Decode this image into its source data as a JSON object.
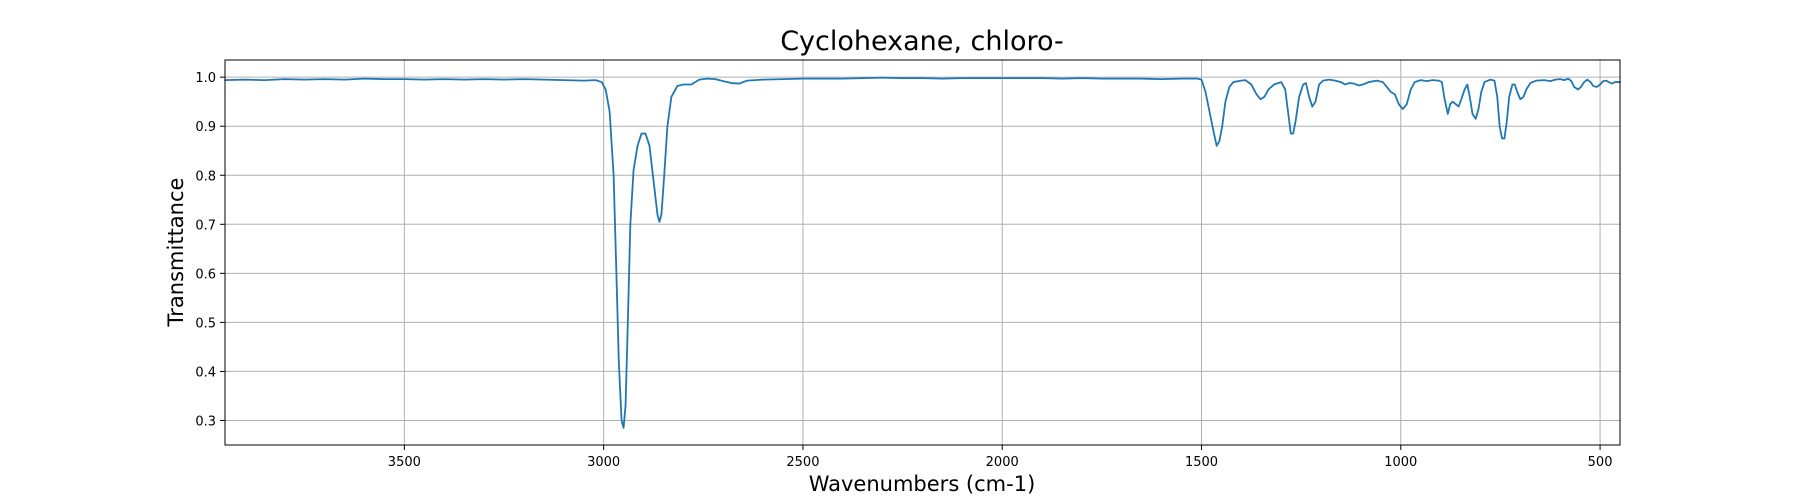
{
  "chart_data": {
    "type": "line",
    "title": "Cyclohexane, chloro-",
    "xlabel": "Wavenumbers (cm-1)",
    "ylabel": "Transmittance",
    "xlim": [
      3950,
      450
    ],
    "ylim": [
      0.25,
      1.035
    ],
    "x_inverted": true,
    "grid": true,
    "x_ticks": [
      3500,
      3000,
      2500,
      2000,
      1500,
      1000,
      500
    ],
    "x_tick_labels": [
      "3500",
      "3000",
      "2500",
      "2000",
      "1500",
      "1000",
      "500"
    ],
    "y_ticks": [
      0.3,
      0.4,
      0.5,
      0.6,
      0.7,
      0.8,
      0.9,
      1.0
    ],
    "y_tick_labels": [
      "0.3",
      "0.4",
      "0.5",
      "0.6",
      "0.7",
      "0.8",
      "0.9",
      "1.0"
    ],
    "series": [
      {
        "color": "#1f77b4",
        "points": [
          [
            3950,
            0.994
          ],
          [
            3900,
            0.995
          ],
          [
            3850,
            0.994
          ],
          [
            3800,
            0.996
          ],
          [
            3750,
            0.995
          ],
          [
            3700,
            0.996
          ],
          [
            3650,
            0.995
          ],
          [
            3600,
            0.997
          ],
          [
            3550,
            0.996
          ],
          [
            3500,
            0.996
          ],
          [
            3450,
            0.995
          ],
          [
            3400,
            0.996
          ],
          [
            3350,
            0.995
          ],
          [
            3300,
            0.996
          ],
          [
            3250,
            0.995
          ],
          [
            3200,
            0.996
          ],
          [
            3150,
            0.995
          ],
          [
            3100,
            0.994
          ],
          [
            3050,
            0.993
          ],
          [
            3020,
            0.994
          ],
          [
            3005,
            0.99
          ],
          [
            2995,
            0.975
          ],
          [
            2985,
            0.93
          ],
          [
            2975,
            0.8
          ],
          [
            2968,
            0.6
          ],
          [
            2962,
            0.42
          ],
          [
            2955,
            0.3
          ],
          [
            2950,
            0.285
          ],
          [
            2945,
            0.33
          ],
          [
            2940,
            0.48
          ],
          [
            2933,
            0.7
          ],
          [
            2925,
            0.81
          ],
          [
            2915,
            0.86
          ],
          [
            2905,
            0.885
          ],
          [
            2895,
            0.885
          ],
          [
            2885,
            0.86
          ],
          [
            2875,
            0.79
          ],
          [
            2865,
            0.72
          ],
          [
            2860,
            0.705
          ],
          [
            2855,
            0.72
          ],
          [
            2848,
            0.8
          ],
          [
            2840,
            0.9
          ],
          [
            2830,
            0.96
          ],
          [
            2815,
            0.982
          ],
          [
            2800,
            0.985
          ],
          [
            2780,
            0.985
          ],
          [
            2760,
            0.995
          ],
          [
            2740,
            0.997
          ],
          [
            2720,
            0.996
          ],
          [
            2700,
            0.992
          ],
          [
            2680,
            0.988
          ],
          [
            2660,
            0.987
          ],
          [
            2640,
            0.993
          ],
          [
            2600,
            0.995
          ],
          [
            2550,
            0.996
          ],
          [
            2500,
            0.997
          ],
          [
            2450,
            0.997
          ],
          [
            2400,
            0.997
          ],
          [
            2350,
            0.998
          ],
          [
            2300,
            0.999
          ],
          [
            2250,
            0.998
          ],
          [
            2200,
            0.998
          ],
          [
            2150,
            0.997
          ],
          [
            2100,
            0.998
          ],
          [
            2050,
            0.998
          ],
          [
            2000,
            0.998
          ],
          [
            1950,
            0.998
          ],
          [
            1900,
            0.998
          ],
          [
            1850,
            0.997
          ],
          [
            1800,
            0.998
          ],
          [
            1750,
            0.997
          ],
          [
            1700,
            0.997
          ],
          [
            1650,
            0.997
          ],
          [
            1600,
            0.996
          ],
          [
            1550,
            0.997
          ],
          [
            1510,
            0.997
          ],
          [
            1500,
            0.995
          ],
          [
            1490,
            0.97
          ],
          [
            1480,
            0.93
          ],
          [
            1470,
            0.89
          ],
          [
            1462,
            0.86
          ],
          [
            1455,
            0.87
          ],
          [
            1448,
            0.9
          ],
          [
            1440,
            0.95
          ],
          [
            1430,
            0.98
          ],
          [
            1420,
            0.99
          ],
          [
            1400,
            0.993
          ],
          [
            1390,
            0.994
          ],
          [
            1375,
            0.985
          ],
          [
            1362,
            0.965
          ],
          [
            1352,
            0.955
          ],
          [
            1342,
            0.96
          ],
          [
            1332,
            0.975
          ],
          [
            1318,
            0.985
          ],
          [
            1300,
            0.99
          ],
          [
            1290,
            0.975
          ],
          [
            1283,
            0.93
          ],
          [
            1276,
            0.885
          ],
          [
            1270,
            0.885
          ],
          [
            1264,
            0.91
          ],
          [
            1255,
            0.96
          ],
          [
            1245,
            0.985
          ],
          [
            1238,
            0.988
          ],
          [
            1230,
            0.96
          ],
          [
            1222,
            0.94
          ],
          [
            1214,
            0.95
          ],
          [
            1205,
            0.985
          ],
          [
            1195,
            0.993
          ],
          [
            1180,
            0.995
          ],
          [
            1165,
            0.993
          ],
          [
            1150,
            0.99
          ],
          [
            1140,
            0.985
          ],
          [
            1130,
            0.988
          ],
          [
            1118,
            0.987
          ],
          [
            1105,
            0.983
          ],
          [
            1095,
            0.985
          ],
          [
            1080,
            0.99
          ],
          [
            1060,
            0.993
          ],
          [
            1045,
            0.99
          ],
          [
            1035,
            0.98
          ],
          [
            1025,
            0.97
          ],
          [
            1015,
            0.965
          ],
          [
            1005,
            0.945
          ],
          [
            995,
            0.935
          ],
          [
            985,
            0.945
          ],
          [
            975,
            0.975
          ],
          [
            965,
            0.99
          ],
          [
            950,
            0.994
          ],
          [
            935,
            0.992
          ],
          [
            920,
            0.994
          ],
          [
            905,
            0.993
          ],
          [
            897,
            0.99
          ],
          [
            890,
            0.955
          ],
          [
            882,
            0.925
          ],
          [
            876,
            0.945
          ],
          [
            870,
            0.95
          ],
          [
            862,
            0.945
          ],
          [
            855,
            0.94
          ],
          [
            848,
            0.955
          ],
          [
            840,
            0.975
          ],
          [
            833,
            0.985
          ],
          [
            827,
            0.96
          ],
          [
            820,
            0.925
          ],
          [
            812,
            0.915
          ],
          [
            805,
            0.935
          ],
          [
            798,
            0.97
          ],
          [
            790,
            0.99
          ],
          [
            775,
            0.995
          ],
          [
            765,
            0.993
          ],
          [
            758,
            0.96
          ],
          [
            752,
            0.9
          ],
          [
            746,
            0.875
          ],
          [
            740,
            0.875
          ],
          [
            734,
            0.91
          ],
          [
            728,
            0.96
          ],
          [
            720,
            0.985
          ],
          [
            714,
            0.985
          ],
          [
            708,
            0.97
          ],
          [
            700,
            0.955
          ],
          [
            692,
            0.96
          ],
          [
            685,
            0.975
          ],
          [
            675,
            0.988
          ],
          [
            660,
            0.993
          ],
          [
            640,
            0.994
          ],
          [
            625,
            0.992
          ],
          [
            612,
            0.995
          ],
          [
            600,
            0.996
          ],
          [
            590,
            0.994
          ],
          [
            580,
            0.997
          ],
          [
            572,
            0.992
          ],
          [
            565,
            0.98
          ],
          [
            555,
            0.975
          ],
          [
            548,
            0.98
          ],
          [
            540,
            0.99
          ],
          [
            532,
            0.995
          ],
          [
            524,
            0.99
          ],
          [
            517,
            0.982
          ],
          [
            508,
            0.98
          ],
          [
            500,
            0.985
          ],
          [
            492,
            0.992
          ],
          [
            485,
            0.993
          ],
          [
            478,
            0.99
          ],
          [
            470,
            0.987
          ],
          [
            462,
            0.99
          ],
          [
            455,
            0.99
          ],
          [
            450,
            0.99
          ]
        ]
      }
    ]
  }
}
